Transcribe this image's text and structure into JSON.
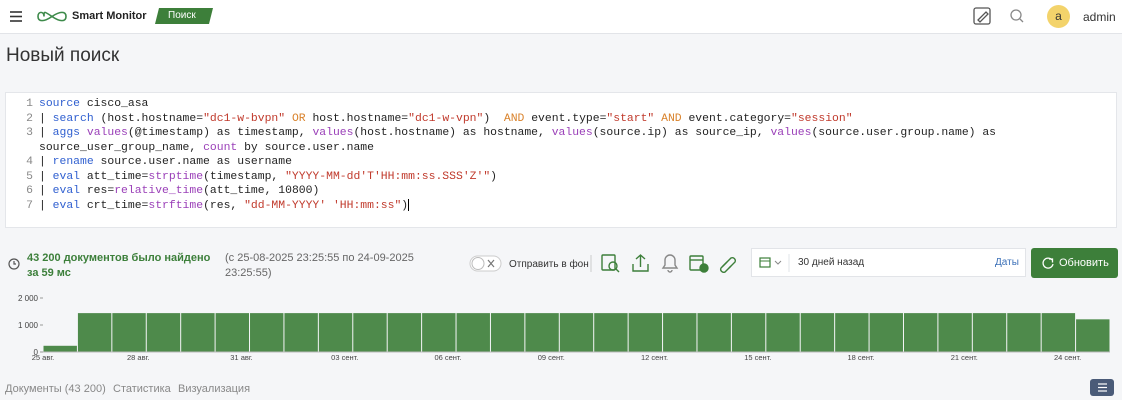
{
  "header": {
    "brand": "Smart Monitor",
    "tab": "Поиск",
    "avatar": "a",
    "user": "admin"
  },
  "page_title": "Новый поиск",
  "editor": {
    "lines": [
      {
        "number": 1,
        "tokens": [
          {
            "text": "source",
            "kind": "kw"
          },
          {
            "text": " cisco_asa",
            "kind": "plain"
          }
        ]
      },
      {
        "number": 2,
        "tokens": [
          {
            "text": "| ",
            "kind": "plain"
          },
          {
            "text": "search",
            "kind": "kw"
          },
          {
            "text": " (host.hostname=",
            "kind": "plain"
          },
          {
            "text": "\"dc1-w-bvpn\"",
            "kind": "str"
          },
          {
            "text": " ",
            "kind": "plain"
          },
          {
            "text": "OR",
            "kind": "op"
          },
          {
            "text": " host.hostname=",
            "kind": "plain"
          },
          {
            "text": "\"dc1-w-vpn\"",
            "kind": "str"
          },
          {
            "text": ")  ",
            "kind": "plain"
          },
          {
            "text": "AND",
            "kind": "op"
          },
          {
            "text": " event.type=",
            "kind": "plain"
          },
          {
            "text": "\"start\"",
            "kind": "str"
          },
          {
            "text": " ",
            "kind": "plain"
          },
          {
            "text": "AND",
            "kind": "op"
          },
          {
            "text": " event.category=",
            "kind": "plain"
          },
          {
            "text": "\"session\"",
            "kind": "str"
          }
        ]
      },
      {
        "number": 3,
        "tokens": [
          {
            "text": "| ",
            "kind": "plain"
          },
          {
            "text": "aggs",
            "kind": "kw"
          },
          {
            "text": " ",
            "kind": "plain"
          },
          {
            "text": "values",
            "kind": "fn"
          },
          {
            "text": "(@timestamp) as timestamp, ",
            "kind": "plain"
          },
          {
            "text": "values",
            "kind": "fn"
          },
          {
            "text": "(host.hostname) as hostname, ",
            "kind": "plain"
          },
          {
            "text": "values",
            "kind": "fn"
          },
          {
            "text": "(source.ip) as source_ip, ",
            "kind": "plain"
          },
          {
            "text": "values",
            "kind": "fn"
          },
          {
            "text": "(source.user.group.name) as source_user_group_name, ",
            "kind": "plain"
          },
          {
            "text": "count",
            "kind": "fn"
          },
          {
            "text": " by source.user.name",
            "kind": "plain"
          }
        ]
      },
      {
        "number": 4,
        "tokens": [
          {
            "text": "| ",
            "kind": "plain"
          },
          {
            "text": "rename",
            "kind": "kw"
          },
          {
            "text": " source.user.name as username",
            "kind": "plain"
          }
        ]
      },
      {
        "number": 5,
        "tokens": [
          {
            "text": "| ",
            "kind": "plain"
          },
          {
            "text": "eval",
            "kind": "kw"
          },
          {
            "text": " att_time=",
            "kind": "plain"
          },
          {
            "text": "strptime",
            "kind": "fn"
          },
          {
            "text": "(timestamp, ",
            "kind": "plain"
          },
          {
            "text": "\"YYYY-MM-dd'T'HH:mm:ss.SSS'Z'\"",
            "kind": "str"
          },
          {
            "text": ")",
            "kind": "plain"
          }
        ]
      },
      {
        "number": 6,
        "tokens": [
          {
            "text": "| ",
            "kind": "plain"
          },
          {
            "text": "eval",
            "kind": "kw"
          },
          {
            "text": " res=",
            "kind": "plain"
          },
          {
            "text": "relative_time",
            "kind": "fn"
          },
          {
            "text": "(att_time, 10800)",
            "kind": "plain"
          }
        ]
      },
      {
        "number": 7,
        "tokens": [
          {
            "text": "| ",
            "kind": "plain"
          },
          {
            "text": "eval",
            "kind": "kw"
          },
          {
            "text": " crt_time=",
            "kind": "plain"
          },
          {
            "text": "strftime",
            "kind": "fn"
          },
          {
            "text": "(res, ",
            "kind": "plain"
          },
          {
            "text": "\"dd-MM-YYYY' 'HH:mm:ss\"",
            "kind": "str"
          },
          {
            "text": ")",
            "kind": "plain"
          }
        ]
      }
    ]
  },
  "status": {
    "found": "43 200 документов было найдено за 59 мс",
    "range": "(с 25-08-2025 23:25:55 по 24-09-2025 23:25:55)",
    "background_toggle": "Отправить в фон",
    "period": "30 дней назад",
    "dates_link": "Даты",
    "refresh_button": "Обновить"
  },
  "chart_data": {
    "type": "bar",
    "categories": [
      "25 авг.",
      null,
      null,
      "28 авг.",
      null,
      null,
      "31 авг.",
      null,
      null,
      "03 сент.",
      null,
      null,
      "06 сент.",
      null,
      null,
      "09 сент.",
      null,
      null,
      "12 сент.",
      null,
      null,
      "15 сент.",
      null,
      null,
      "18 сент.",
      null,
      null,
      "21 сент.",
      null,
      null,
      "24 сент."
    ],
    "values": [
      230,
      1440,
      1440,
      1440,
      1440,
      1440,
      1440,
      1440,
      1440,
      1440,
      1440,
      1440,
      1440,
      1440,
      1440,
      1440,
      1440,
      1440,
      1440,
      1440,
      1440,
      1440,
      1440,
      1440,
      1440,
      1440,
      1440,
      1440,
      1440,
      1440,
      1210
    ],
    "color": "#4e8a4b",
    "ylim": [
      0,
      2000
    ],
    "yticks": [
      0,
      {
        "value": 1000,
        "label": "1 000"
      },
      {
        "value": 2000,
        "label": "2 000"
      }
    ],
    "grid": false
  },
  "tabs": [
    "Документы (43 200)",
    "Статистика",
    "Визуализация"
  ]
}
